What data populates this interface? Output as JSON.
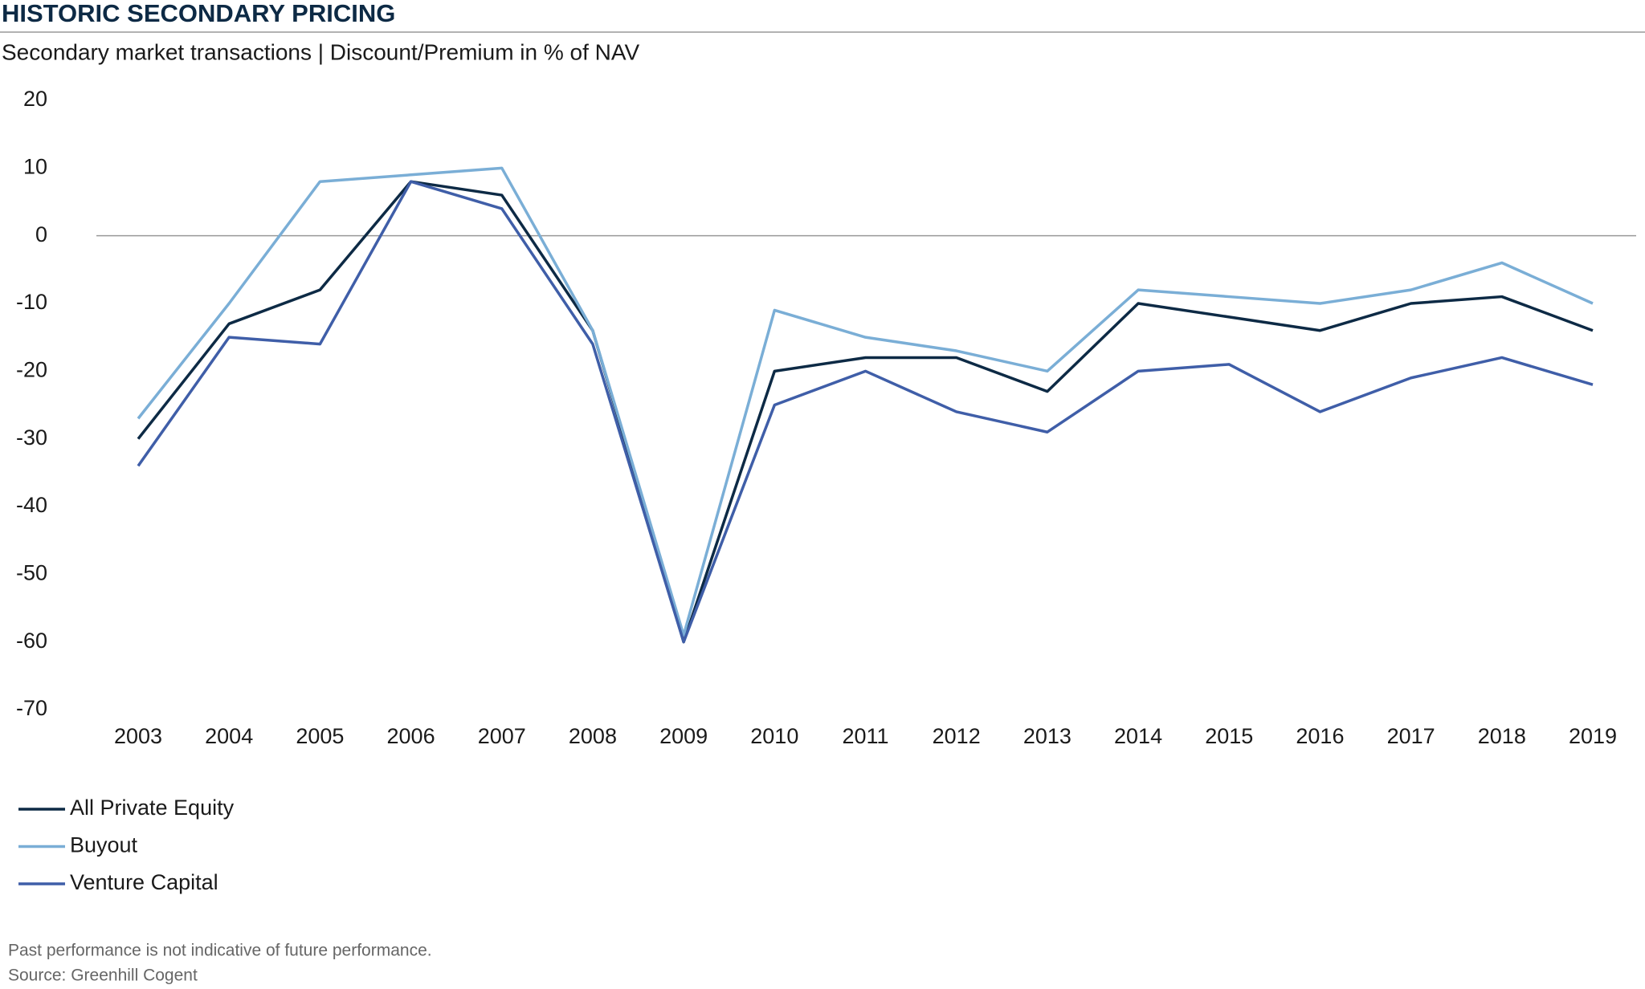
{
  "chart_data": {
    "type": "line",
    "title": "HISTORIC SECONDARY PRICING",
    "subtitle": "Secondary market transactions | Discount/Premium in % of NAV",
    "categories": [
      "2003",
      "2004",
      "2005",
      "2006",
      "2007",
      "2008",
      "2009",
      "2010",
      "2011",
      "2012",
      "2013",
      "2014",
      "2015",
      "2016",
      "2017",
      "2018",
      "2019"
    ],
    "series": [
      {
        "name": "All Private Equity",
        "color": "#0d2a45",
        "values": [
          -30,
          -13,
          -8,
          8,
          6,
          -14,
          -60,
          -20,
          -18,
          -18,
          -23,
          -10,
          -12,
          -14,
          -10,
          -9,
          -14
        ]
      },
      {
        "name": "Buyout",
        "color": "#7aaed6",
        "values": [
          -27,
          -10,
          8,
          9,
          10,
          -14,
          -59,
          -11,
          -15,
          -17,
          -20,
          -8,
          -9,
          -10,
          -8,
          -4,
          -10
        ]
      },
      {
        "name": "Venture Capital",
        "color": "#3f5ea8",
        "values": [
          -34,
          -15,
          -16,
          8,
          4,
          -16,
          -60,
          -25,
          -20,
          -26,
          -29,
          -20,
          -19,
          -26,
          -21,
          -18,
          -22
        ]
      }
    ],
    "ylim": [
      -70,
      20
    ],
    "yticks": [
      20,
      10,
      0,
      -10,
      -20,
      -30,
      -40,
      -50,
      -60,
      -70
    ],
    "notes": [
      "Past performance is not indicative of future performance.",
      "Source: Greenhill Cogent"
    ]
  }
}
